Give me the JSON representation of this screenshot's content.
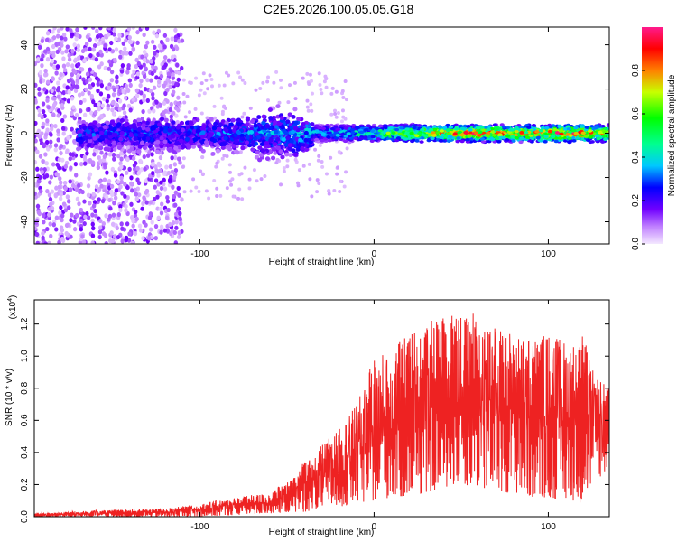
{
  "title": "C2E5.2026.100.05.05.G18",
  "chart_data": [
    {
      "type": "heatmap",
      "xlabel": "Height of straight line (km)",
      "ylabel": "Frequency (Hz)",
      "xlim": [
        -195,
        135
      ],
      "ylim": [
        -50,
        48
      ],
      "x_ticks": [
        -100,
        0,
        100
      ],
      "x_tick_labels": [
        "-100",
        "0",
        "100"
      ],
      "y_ticks": [
        -40,
        -20,
        0,
        20,
        40
      ],
      "y_tick_labels": [
        "-40",
        "-20",
        "0",
        "20",
        "40"
      ],
      "grid": false,
      "description_regions": [
        {
          "x_range": [
            -195,
            -110
          ],
          "f_range": [
            -50,
            48
          ],
          "amplitude": 0.08,
          "pattern": "scattered noise"
        },
        {
          "x_range": [
            -170,
            -35
          ],
          "f_range": [
            -8,
            8
          ],
          "amplitude": 0.2,
          "pattern": "band"
        },
        {
          "x_range": [
            -35,
            135
          ],
          "f_range": [
            -3,
            3
          ],
          "amplitude": 0.55,
          "pattern": "narrow band"
        }
      ],
      "band_peaks": [
        {
          "x": -100,
          "amplitude": 0.3
        },
        {
          "x": -55,
          "amplitude": 0.35
        },
        {
          "x": -30,
          "amplitude": 0.4
        },
        {
          "x": 0,
          "amplitude": 0.55
        },
        {
          "x": 20,
          "amplitude": 0.75
        },
        {
          "x": 40,
          "amplitude": 0.85
        },
        {
          "x": 60,
          "amplitude": 0.9
        },
        {
          "x": 85,
          "amplitude": 0.85
        },
        {
          "x": 115,
          "amplitude": 0.95
        },
        {
          "x": 130,
          "amplitude": 0.8
        }
      ],
      "colorbar": {
        "label": "Normalized spectral amplitude",
        "range": [
          0.0,
          1.0
        ],
        "ticks": [
          0.0,
          0.2,
          0.4,
          0.6,
          0.8
        ],
        "tick_labels": [
          "0.0",
          "0.2",
          "0.4",
          "0.6",
          "0.8"
        ],
        "colors": [
          "#f0e0ff",
          "#8a2be2",
          "#0000ff",
          "#00ffff",
          "#00ff00",
          "#ffff00",
          "#ff0000",
          "#ff1493"
        ]
      }
    },
    {
      "type": "line",
      "xlabel": "Height of straight line (km)",
      "ylabel": "SNR (10 * v/v)",
      "y_multiplier_base": "(x10",
      "y_multiplier_exp": "4",
      "y_multiplier_close": ")",
      "xlim": [
        -195,
        135
      ],
      "ylim": [
        0.0,
        1.35
      ],
      "x_ticks": [
        -100,
        0,
        100
      ],
      "x_tick_labels": [
        "-100",
        "0",
        "100"
      ],
      "y_ticks": [
        0.0,
        0.2,
        0.4,
        0.6,
        0.8,
        1.0,
        1.2
      ],
      "y_tick_labels": [
        "0.0",
        "0.2",
        "0.4",
        "0.6",
        "0.8",
        "1.0",
        "1.2"
      ],
      "grid": false,
      "color": "#ee2222",
      "envelope": {
        "x": [
          -195,
          -160,
          -120,
          -100,
          -80,
          -60,
          -45,
          -40,
          -35,
          -30,
          -20,
          -10,
          0,
          10,
          20,
          30,
          40,
          45,
          50,
          60,
          70,
          80,
          90,
          100,
          110,
          115,
          120,
          125,
          130,
          135
        ],
        "max": [
          0.02,
          0.04,
          0.05,
          0.08,
          0.12,
          0.15,
          0.25,
          0.4,
          0.35,
          0.45,
          0.55,
          0.7,
          1.0,
          1.05,
          1.15,
          1.2,
          1.28,
          1.32,
          1.25,
          1.28,
          1.2,
          1.15,
          1.12,
          1.15,
          1.1,
          1.1,
          1.15,
          0.92,
          0.85,
          0.8
        ],
        "min": [
          0.0,
          0.0,
          0.0,
          0.0,
          0.01,
          0.02,
          0.03,
          0.03,
          0.04,
          0.05,
          0.06,
          0.08,
          0.1,
          0.12,
          0.12,
          0.15,
          0.18,
          0.2,
          0.2,
          0.18,
          0.15,
          0.15,
          0.12,
          0.12,
          0.1,
          0.1,
          0.08,
          0.2,
          0.25,
          0.3
        ]
      }
    }
  ]
}
